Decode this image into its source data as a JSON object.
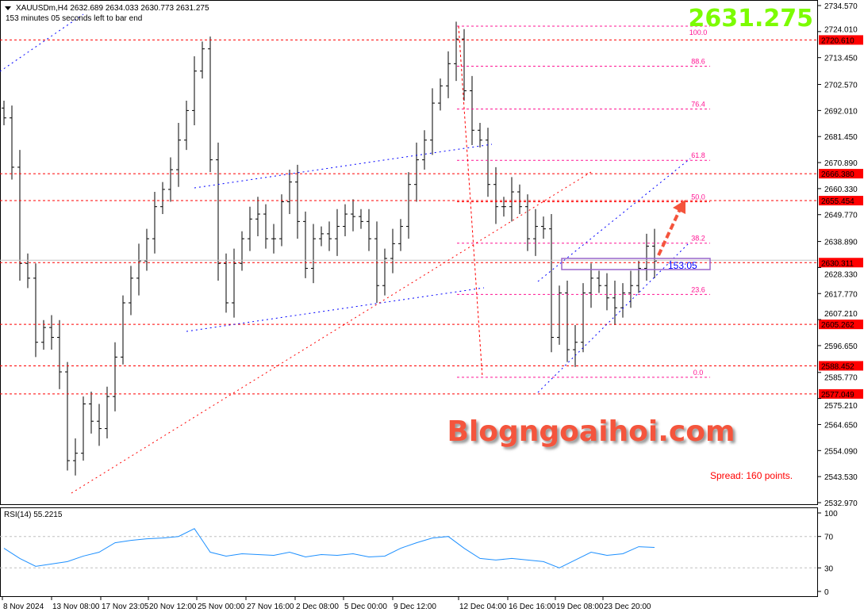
{
  "chart_data": {
    "type": "ohlc-bar",
    "symbol_line": "XAUUSDm,H4  2632.689 2634.033 2630.773 2631.275",
    "timer_line": "153 minutes 05 seconds left to bar end",
    "current_price": "2631.275",
    "price_ticks": [
      "2734.570",
      "2724.010",
      "2713.450",
      "2702.570",
      "2692.010",
      "2681.450",
      "2670.890",
      "2660.330",
      "2649.770",
      "2638.890",
      "2628.330",
      "2617.770",
      "2607.210",
      "2596.650",
      "2585.770",
      "2575.210",
      "2564.650",
      "2554.090",
      "2543.530",
      "2532.970"
    ],
    "ylim": [
      2532.97,
      2734.57
    ],
    "time_labels": [
      "8 Nov 2024",
      "13 Nov 08:00",
      "17 Nov 23:05",
      "20 Nov 12:00",
      "25 Nov 00:00",
      "27 Nov 16:00",
      "2 Dec 08:00",
      "5 Dec 00:00",
      "9 Dec 12:00",
      "12 Dec 04:00",
      "16 Dec 16:00",
      "19 Dec 08:00",
      "23 Dec 20:00"
    ],
    "closes": [
      2689,
      2669,
      2630,
      2624,
      2598,
      2604,
      2600,
      2586,
      2550,
      2553,
      2573,
      2566,
      2563,
      2576,
      2592,
      2614,
      2624,
      2631,
      2640,
      2653,
      2660,
      2668,
      2680,
      2692,
      2708,
      2717,
      2672,
      2630,
      2614,
      2630,
      2640,
      2648,
      2650,
      2640,
      2640,
      2655,
      2663,
      2647,
      2628,
      2640,
      2642,
      2640,
      2645,
      2650,
      2649,
      2647,
      2640,
      2621,
      2632,
      2638,
      2645,
      2662,
      2672,
      2680,
      2695,
      2702,
      2711,
      2721,
      2700,
      2684,
      2680,
      2662,
      2653,
      2653,
      2659,
      2653,
      2640,
      2645,
      2644,
      2600,
      2618,
      2595,
      2598,
      2618,
      2624,
      2621,
      2616,
      2612,
      2618,
      2621,
      2628,
      2637,
      2631
    ],
    "price_levels": [
      {
        "label": "2720.610",
        "value": 2720.61
      },
      {
        "label": "2666.380",
        "value": 2666.38
      },
      {
        "label": "2655.454",
        "value": 2655.454
      },
      {
        "label": "2630.311",
        "value": 2630.311
      },
      {
        "label": "2605.262",
        "value": 2605.262
      },
      {
        "label": "2588.452",
        "value": 2588.452
      },
      {
        "label": "2577.049",
        "value": 2577.049
      }
    ],
    "fibonacci": {
      "high": 2726.2,
      "low": 2583.8,
      "levels": [
        "100.0",
        "88.6",
        "76.4",
        "61.8",
        "50.0",
        "38.2",
        "23.6",
        "0.0"
      ]
    },
    "countdown_label": "153:05",
    "spread_label": "Spread: 160 points.",
    "watermark": "Blogngoaihoi.com",
    "rsi": {
      "label": "RSI(14) 55.2215",
      "ticks": [
        "100",
        "70",
        "30",
        "0"
      ],
      "levels": [
        70,
        30
      ],
      "values": [
        55,
        42,
        32,
        35,
        38,
        45,
        50,
        62,
        65,
        67,
        68,
        70,
        80,
        50,
        45,
        48,
        47,
        46,
        50,
        44,
        47,
        46,
        48,
        44,
        45,
        55,
        62,
        68,
        70,
        55,
        42,
        40,
        42,
        40,
        38,
        30,
        40,
        50,
        46,
        48,
        57,
        56
      ]
    },
    "colors": {
      "level": "#ff0000",
      "fib": "#ff1493",
      "trend_blue": "#0000ff",
      "trend_red": "#ff0000",
      "current_price": "#7cfc00",
      "rsi": "#1e90ff",
      "box": "#9966cc"
    }
  }
}
